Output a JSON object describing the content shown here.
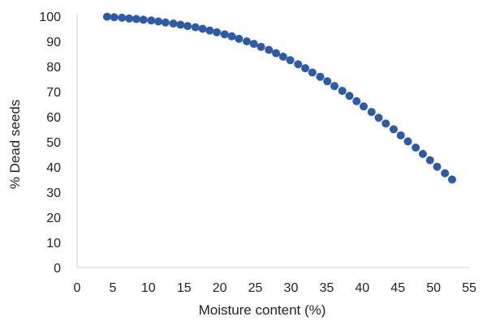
{
  "chart_data": {
    "type": "scatter",
    "title": "",
    "xlabel": "Moisture content (%)",
    "ylabel": "% Dead seeds",
    "xlim": [
      0,
      55
    ],
    "ylim": [
      0,
      100
    ],
    "x_ticks": [
      "0",
      "5",
      "10",
      "15",
      "20",
      "25",
      "30",
      "35",
      "40",
      "45",
      "50",
      "55"
    ],
    "y_ticks": [
      "0",
      "10",
      "20",
      "30",
      "40",
      "50",
      "60",
      "70",
      "80",
      "90",
      "100"
    ],
    "grid": false,
    "legend": "none",
    "marker_color": "#2E5BA8",
    "axis_color": "#d0d0d0",
    "series": [
      {
        "x": [
          4.2,
          5.2,
          6.3,
          7.3,
          8.3,
          9.3,
          10.4,
          11.4,
          12.4,
          13.5,
          14.5,
          15.5,
          16.6,
          17.6,
          18.6,
          19.6,
          20.7,
          21.7,
          22.7,
          23.8,
          24.8,
          25.8,
          26.9,
          27.9,
          28.9,
          29.9,
          31.0,
          32.0,
          33.0,
          34.1,
          35.1,
          36.1,
          37.2,
          38.2,
          39.2,
          40.2,
          41.3,
          42.3,
          43.3,
          44.4,
          45.4,
          46.4,
          47.5,
          48.5,
          49.5,
          50.5,
          51.6,
          52.6
        ],
        "y": [
          99.8,
          99.6,
          99.4,
          99.1,
          98.9,
          98.6,
          98.3,
          97.9,
          97.5,
          97.1,
          96.6,
          96.1,
          95.6,
          95.0,
          94.3,
          93.6,
          92.8,
          92.0,
          91.0,
          90.0,
          89.0,
          87.8,
          86.6,
          85.3,
          83.9,
          82.5,
          80.9,
          79.3,
          77.6,
          75.9,
          74.1,
          72.2,
          70.3,
          68.3,
          66.2,
          64.1,
          61.9,
          59.6,
          57.3,
          55.0,
          52.6,
          50.2,
          47.7,
          45.2,
          42.7,
          40.1,
          37.5,
          35.0
        ]
      }
    ]
  }
}
